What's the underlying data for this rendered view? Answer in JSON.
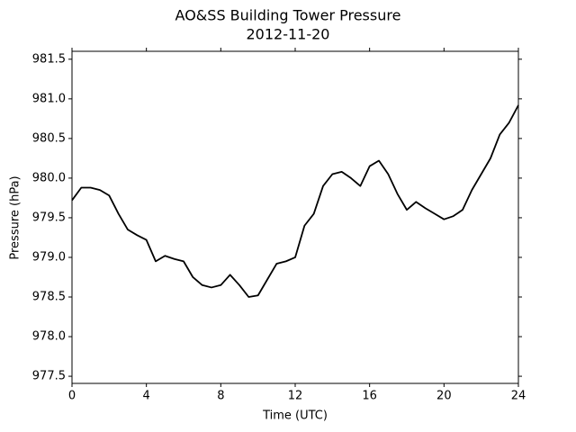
{
  "chart_data": {
    "type": "line",
    "title": "AO&SS Building Tower Pressure",
    "subtitle": "2012-11-20",
    "x_label": "Time (UTC)",
    "y_label": "Pressure (hPa)",
    "x": [
      0,
      0.5,
      1,
      1.5,
      2,
      2.5,
      3,
      3.5,
      4,
      4.5,
      5,
      5.5,
      6,
      6.5,
      7,
      7.5,
      8,
      8.5,
      9,
      9.5,
      10,
      10.5,
      11,
      11.5,
      12,
      12.5,
      13,
      13.5,
      14,
      14.5,
      15,
      15.5,
      16,
      16.5,
      17,
      17.5,
      18,
      18.5,
      19,
      19.5,
      20,
      20.5,
      21,
      21.5,
      22,
      22.5,
      23,
      23.5,
      24
    ],
    "series": [
      {
        "name": "Pressure",
        "color": "#000000",
        "values": [
          979.72,
          979.88,
          979.88,
          979.85,
          979.78,
          979.55,
          979.35,
          979.28,
          979.22,
          978.95,
          979.02,
          978.98,
          978.95,
          978.75,
          978.65,
          978.62,
          978.65,
          978.78,
          978.65,
          978.5,
          978.52,
          978.72,
          978.92,
          978.95,
          979.0,
          979.4,
          979.55,
          979.9,
          980.05,
          980.08,
          980.0,
          979.9,
          980.15,
          980.22,
          980.05,
          979.8,
          979.6,
          979.7,
          979.62,
          979.55,
          979.48,
          979.52,
          979.6,
          979.85,
          980.05,
          980.25,
          980.55,
          980.7,
          980.92
        ]
      }
    ],
    "xlim": [
      0,
      24
    ],
    "xticks": [
      0,
      4,
      8,
      12,
      16,
      20,
      24
    ],
    "ylim": [
      977.41,
      981.6
    ],
    "yticks": [
      977.5,
      {
        "value": 978,
        "label": "978.0"
      },
      978.5,
      {
        "value": 979,
        "label": "979.0"
      },
      979.5,
      {
        "value": 980,
        "label": "980.0"
      },
      980.5,
      {
        "value": 981,
        "label": "981.0"
      },
      981.5
    ],
    "grid": false
  }
}
